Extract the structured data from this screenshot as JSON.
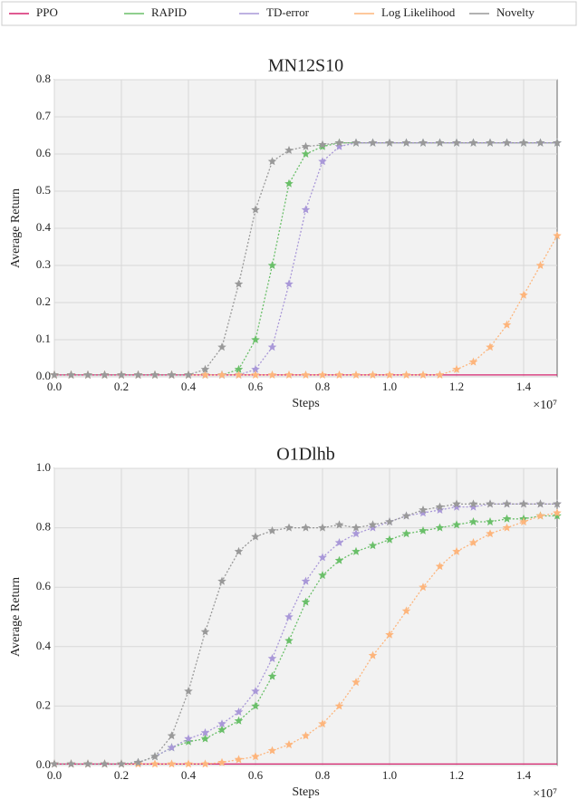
{
  "chart_data": [
    {
      "type": "line",
      "title": "MN12S10",
      "xlabel": "Steps",
      "ylabel": "Average Return",
      "offset_label": "×10⁷",
      "xlim": [
        0,
        1.5
      ],
      "ylim": [
        0,
        0.8
      ],
      "xticks": [
        {
          "value": 0,
          "label": "0.0"
        },
        0.2,
        0.4,
        0.6,
        0.8,
        {
          "value": 1,
          "label": "1.0"
        },
        1.2,
        1.4
      ],
      "yticks": [
        {
          "value": 0,
          "label": "0.0"
        },
        0.1,
        0.2,
        0.3,
        0.4,
        0.5,
        0.6,
        0.7,
        0.8
      ],
      "grid": true,
      "x": [
        0,
        0.05,
        0.1,
        0.15,
        0.2,
        0.25,
        0.3,
        0.35,
        0.4,
        0.45,
        0.5,
        0.55,
        0.6,
        0.65,
        0.7,
        0.75,
        0.8,
        0.85,
        0.9,
        0.95,
        1,
        1.05,
        1.1,
        1.15,
        1.2,
        1.25,
        1.3,
        1.35,
        1.4,
        1.45,
        1.5
      ],
      "series": [
        {
          "name": "PPO",
          "color": "#d6246e",
          "values": [
            0.005,
            0.005,
            0.005,
            0.005,
            0.005,
            0.005,
            0.005,
            0.005,
            0.005,
            0.005,
            0.005,
            0.005,
            0.005,
            0.005,
            0.005,
            0.005,
            0.005,
            0.005,
            0.005,
            0.005,
            0.005,
            0.005,
            0.005,
            0.005,
            0.005,
            0.005,
            0.005,
            0.005,
            0.005,
            0.005,
            0.005
          ]
        },
        {
          "name": "RAPID",
          "color": "#6abf69",
          "values": [
            0.005,
            0.005,
            0.005,
            0.005,
            0.005,
            0.005,
            0.005,
            0.005,
            0.005,
            0.005,
            0.005,
            0.02,
            0.1,
            0.3,
            0.52,
            0.6,
            0.62,
            0.63,
            0.63,
            0.63,
            0.63,
            0.63,
            0.63,
            0.63,
            0.63,
            0.63,
            0.63,
            0.63,
            0.63,
            0.63,
            0.63
          ]
        },
        {
          "name": "TD-error",
          "color": "#a998d8",
          "values": [
            0.005,
            0.005,
            0.005,
            0.005,
            0.005,
            0.005,
            0.005,
            0.005,
            0.005,
            0.005,
            0.005,
            0.005,
            0.02,
            0.08,
            0.25,
            0.45,
            0.58,
            0.62,
            0.63,
            0.63,
            0.63,
            0.63,
            0.63,
            0.63,
            0.63,
            0.63,
            0.63,
            0.63,
            0.63,
            0.63,
            0.63
          ]
        },
        {
          "name": "Log Likelihood",
          "color": "#fdb57c",
          "values": [
            0.005,
            0.005,
            0.005,
            0.005,
            0.005,
            0.005,
            0.005,
            0.005,
            0.005,
            0.005,
            0.005,
            0.005,
            0.005,
            0.005,
            0.005,
            0.005,
            0.005,
            0.005,
            0.005,
            0.005,
            0.005,
            0.005,
            0.005,
            0.005,
            0.02,
            0.04,
            0.08,
            0.14,
            0.22,
            0.3,
            0.38
          ]
        },
        {
          "name": "Novelty",
          "color": "#999999",
          "values": [
            0.005,
            0.005,
            0.005,
            0.005,
            0.005,
            0.005,
            0.005,
            0.005,
            0.005,
            0.02,
            0.08,
            0.25,
            0.45,
            0.58,
            0.61,
            0.62,
            0.625,
            0.63,
            0.63,
            0.63,
            0.63,
            0.63,
            0.63,
            0.63,
            0.63,
            0.63,
            0.63,
            0.63,
            0.63,
            0.63,
            0.63
          ]
        }
      ]
    },
    {
      "type": "line",
      "title": "O1Dlhb",
      "xlabel": "Steps",
      "ylabel": "Average Return",
      "offset_label": "×10⁷",
      "xlim": [
        0,
        1.5
      ],
      "ylim": [
        0,
        1
      ],
      "xticks": [
        {
          "value": 0,
          "label": "0.0"
        },
        0.2,
        0.4,
        0.6,
        0.8,
        {
          "value": 1,
          "label": "1.0"
        },
        1.2,
        1.4
      ],
      "yticks": [
        {
          "value": 0,
          "label": "0.0"
        },
        0.2,
        0.4,
        0.6,
        0.8,
        {
          "value": 1,
          "label": "1.0"
        }
      ],
      "grid": true,
      "x": [
        0,
        0.05,
        0.1,
        0.15,
        0.2,
        0.25,
        0.3,
        0.35,
        0.4,
        0.45,
        0.5,
        0.55,
        0.6,
        0.65,
        0.7,
        0.75,
        0.8,
        0.85,
        0.9,
        0.95,
        1,
        1.05,
        1.1,
        1.15,
        1.2,
        1.25,
        1.3,
        1.35,
        1.4,
        1.45,
        1.5
      ],
      "series": [
        {
          "name": "PPO",
          "color": "#d6246e",
          "values": [
            0.005,
            0.005,
            0.005,
            0.005,
            0.005,
            0.005,
            0.005,
            0.005,
            0.005,
            0.005,
            0.005,
            0.005,
            0.005,
            0.005,
            0.005,
            0.005,
            0.005,
            0.005,
            0.005,
            0.005,
            0.005,
            0.005,
            0.005,
            0.005,
            0.005,
            0.005,
            0.005,
            0.005,
            0.005,
            0.005,
            0.005
          ]
        },
        {
          "name": "RAPID",
          "color": "#6abf69",
          "values": [
            0.005,
            0.005,
            0.005,
            0.005,
            0.005,
            0.01,
            0.03,
            0.06,
            0.08,
            0.09,
            0.12,
            0.15,
            0.2,
            0.3,
            0.42,
            0.55,
            0.64,
            0.69,
            0.72,
            0.74,
            0.76,
            0.78,
            0.79,
            0.8,
            0.81,
            0.82,
            0.82,
            0.83,
            0.83,
            0.84,
            0.84
          ]
        },
        {
          "name": "TD-error",
          "color": "#a998d8",
          "values": [
            0.005,
            0.005,
            0.005,
            0.005,
            0.005,
            0.01,
            0.03,
            0.06,
            0.09,
            0.11,
            0.14,
            0.18,
            0.25,
            0.36,
            0.5,
            0.62,
            0.7,
            0.75,
            0.78,
            0.8,
            0.82,
            0.84,
            0.85,
            0.86,
            0.87,
            0.87,
            0.88,
            0.88,
            0.88,
            0.88,
            0.88
          ]
        },
        {
          "name": "Log Likelihood",
          "color": "#fdb57c",
          "values": [
            0.005,
            0.005,
            0.005,
            0.005,
            0.005,
            0.005,
            0.005,
            0.005,
            0.005,
            0.005,
            0.01,
            0.02,
            0.03,
            0.05,
            0.07,
            0.1,
            0.14,
            0.2,
            0.28,
            0.37,
            0.44,
            0.52,
            0.6,
            0.67,
            0.72,
            0.75,
            0.78,
            0.8,
            0.82,
            0.84,
            0.85
          ]
        },
        {
          "name": "Novelty",
          "color": "#999999",
          "values": [
            0.005,
            0.005,
            0.005,
            0.005,
            0.005,
            0.01,
            0.03,
            0.1,
            0.25,
            0.45,
            0.62,
            0.72,
            0.77,
            0.79,
            0.8,
            0.8,
            0.8,
            0.81,
            0.8,
            0.81,
            0.82,
            0.84,
            0.86,
            0.87,
            0.88,
            0.88,
            0.88,
            0.88,
            0.88,
            0.88,
            0.88
          ]
        }
      ]
    }
  ]
}
